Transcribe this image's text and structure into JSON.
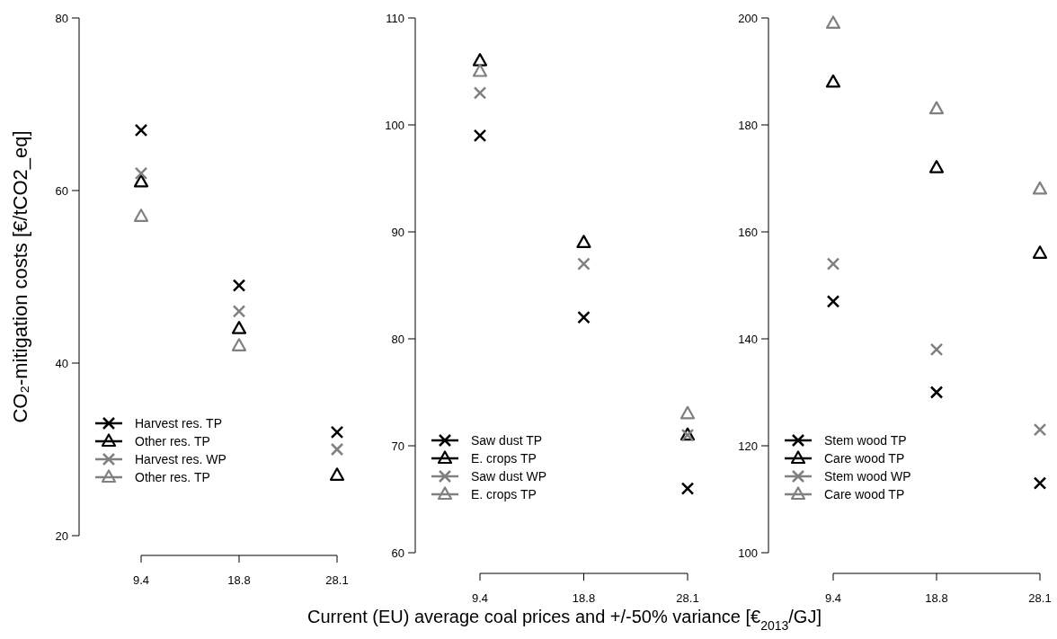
{
  "chart_data": [
    {
      "type": "scatter",
      "ylabel": "CO₂-mitigation costs [€/tCO2_eq]",
      "categories": [
        "9.4",
        "18.8",
        "28.1"
      ],
      "ylim": [
        20,
        80
      ],
      "yticks": [
        20,
        40,
        60,
        80
      ],
      "legend": "bottom left",
      "grid": false,
      "series": [
        {
          "name": "Harvest res. TP",
          "color": "#000000",
          "marker": "cross",
          "values": [
            67,
            49,
            32
          ]
        },
        {
          "name": "Other res. TP",
          "color": "#000000",
          "marker": "triangle",
          "values": [
            61,
            44,
            27
          ]
        },
        {
          "name": "Harvest res. WP",
          "color": "#808080",
          "marker": "cross",
          "values": [
            62,
            46,
            30
          ]
        },
        {
          "name": "Other res. TP",
          "color": "#808080",
          "marker": "triangle",
          "values": [
            57,
            42,
            null
          ]
        }
      ]
    },
    {
      "type": "scatter",
      "xlabel": "Current (EU) average coal prices and +/-50% variance [€$_{2013}$/GJ]",
      "categories": [
        "9.4",
        "18.8",
        "28.1"
      ],
      "ylim": [
        60,
        110
      ],
      "yticks": [
        60,
        70,
        80,
        90,
        100,
        110
      ],
      "legend": "bottom left",
      "grid": false,
      "series": [
        {
          "name": "Saw dust TP",
          "color": "#000000",
          "marker": "cross",
          "values": [
            99,
            82,
            66
          ]
        },
        {
          "name": "E. crops TP",
          "color": "#000000",
          "marker": "triangle",
          "values": [
            106,
            89,
            71
          ]
        },
        {
          "name": "Saw dust WP",
          "color": "#808080",
          "marker": "cross",
          "values": [
            103,
            87,
            71
          ]
        },
        {
          "name": "E. crops TP",
          "color": "#808080",
          "marker": "triangle",
          "values": [
            105,
            null,
            73
          ]
        }
      ]
    },
    {
      "type": "scatter",
      "categories": [
        "9.4",
        "18.8",
        "28.1"
      ],
      "ylim": [
        100,
        200
      ],
      "yticks": [
        100,
        120,
        140,
        160,
        180,
        200
      ],
      "legend": "bottom left",
      "grid": false,
      "series": [
        {
          "name": "Stem wood TP",
          "color": "#000000",
          "marker": "cross",
          "values": [
            147,
            130,
            113
          ]
        },
        {
          "name": "Care wood TP",
          "color": "#000000",
          "marker": "triangle",
          "values": [
            188,
            172,
            156
          ]
        },
        {
          "name": "Stem wood WP",
          "color": "#808080",
          "marker": "cross",
          "values": [
            154,
            138,
            123
          ]
        },
        {
          "name": "Care wood TP",
          "color": "#808080",
          "marker": "triangle",
          "values": [
            199,
            183,
            168
          ]
        }
      ]
    }
  ]
}
